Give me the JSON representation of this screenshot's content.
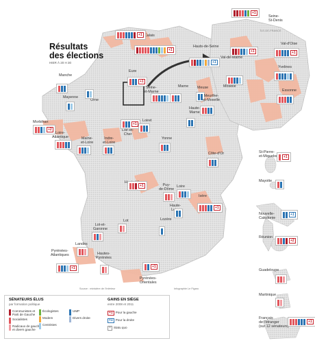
{
  "title_lines": [
    "Résultats",
    "des élections"
  ],
  "subtitle": "HIER À 20 H 30",
  "paris_region_note": "ÎLE-DE-FRANCE",
  "colors": {
    "communistes": "#b01e2c",
    "socialistes": "#e2565c",
    "gauche_divers": "#f19ba0",
    "ecologistes": "#6fb33f",
    "modem": "#f2a93b",
    "centristes": "#9fcbe8",
    "ump": "#2b74b3",
    "droite_divers": "#9fb6d6",
    "land": "#dcdcdc",
    "highlight": "#f2b8a2",
    "badge_left": "#c7202a",
    "badge_right": "#2b74b3"
  },
  "departments": [
    {
      "id": "pas-de-calais",
      "name": "Pas-de-Calais",
      "seats": [
        "socialistes",
        "socialistes",
        "socialistes",
        "ump",
        "ump",
        "ump",
        "communistes"
      ],
      "gain": "+1",
      "gain_side": "left"
    },
    {
      "id": "nord",
      "name": "Nord",
      "seats": [
        "communistes",
        "socialistes",
        "socialistes",
        "socialistes",
        "socialistes",
        "ump",
        "ump",
        "ump",
        "ecologistes",
        "centristes",
        "modem"
      ],
      "gain": "+1",
      "gain_side": "left"
    },
    {
      "id": "seine-st-denis",
      "name": "Seine-\nSt-Denis",
      "seats": [
        "communistes",
        "communistes",
        "socialistes",
        "socialistes",
        "ump",
        "ecologistes"
      ],
      "gain": "+1",
      "gain_side": "left"
    },
    {
      "id": "hauts-de-seine",
      "name": "Hauts-de-Seine",
      "seats": [
        "socialistes",
        "communistes",
        "ump",
        "ump",
        "centristes",
        "modem",
        "droite_divers"
      ],
      "gain": "+1",
      "gain_side": "right"
    },
    {
      "id": "val-de-marne",
      "name": "Val-de-Marne",
      "seats": [
        "communistes",
        "communistes",
        "socialistes",
        "ump",
        "ump",
        "centristes"
      ],
      "gain": "+1",
      "gain_side": "left"
    },
    {
      "id": "val-doise",
      "name": "Val-d'Oise",
      "seats": [
        "socialistes",
        "socialistes",
        "ump",
        "ump",
        "ump"
      ],
      "gain": "+1",
      "gain_side": "left"
    },
    {
      "id": "yvelines",
      "name": "Yvelines",
      "seats": [
        "socialistes",
        "ump",
        "ump",
        "ump",
        "centristes",
        "ump"
      ],
      "gain": "",
      "gain_side": ""
    },
    {
      "id": "essonne",
      "name": "Essonne",
      "seats": [
        "socialistes",
        "socialistes",
        "socialistes",
        "ump",
        "ump"
      ],
      "gain": "",
      "gain_side": ""
    },
    {
      "id": "manche",
      "name": "Manche",
      "seats": [
        "socialistes",
        "ump",
        "ump"
      ],
      "gain": "",
      "gain_side": ""
    },
    {
      "id": "orne",
      "name": "Orne",
      "seats": [
        "ump",
        "centristes"
      ],
      "gain": "",
      "gain_side": ""
    },
    {
      "id": "eure",
      "name": "Eure",
      "seats": [
        "socialistes",
        "ump",
        "ump"
      ],
      "gain": "+1",
      "gain_side": "left"
    },
    {
      "id": "seine-et-marne",
      "name": "Seine-\net-Marne",
      "seats": [
        "socialistes",
        "socialistes",
        "ump",
        "ump",
        "ump",
        "centristes"
      ],
      "gain": "",
      "gain_side": ""
    },
    {
      "id": "marne",
      "name": "Marne",
      "seats": [
        "socialistes",
        "ump",
        "ump"
      ],
      "gain": "",
      "gain_side": ""
    },
    {
      "id": "meuse",
      "name": "Meuse",
      "seats": [
        "ump",
        "ump"
      ],
      "gain": "",
      "gain_side": ""
    },
    {
      "id": "moselle",
      "name": "Moselle",
      "seats": [
        "socialistes",
        "socialistes",
        "ump",
        "ump",
        "centristes"
      ],
      "gain": "",
      "gain_side": ""
    },
    {
      "id": "meurthe-et-moselle",
      "name": "Meurthe-\net-Moselle",
      "seats": [
        "socialistes",
        "socialistes",
        "ump",
        "ump"
      ],
      "gain": "",
      "gain_side": ""
    },
    {
      "id": "haute-marne",
      "name": "Haute-\nMarne",
      "seats": [
        "ump",
        "ump"
      ],
      "gain": "",
      "gain_side": ""
    },
    {
      "id": "mayenne",
      "name": "Mayenne",
      "seats": [
        "ump",
        "centristes"
      ],
      "gain": "",
      "gain_side": ""
    },
    {
      "id": "morbihan",
      "name": "Morbihan",
      "seats": [
        "socialistes",
        "socialistes",
        "ump",
        "centristes"
      ],
      "gain": "+2",
      "gain_side": "left"
    },
    {
      "id": "loire-atlantique",
      "name": "Loire-\nAtlantique",
      "seats": [
        "socialistes",
        "socialistes",
        "socialistes",
        "ump",
        "ump"
      ],
      "gain": "",
      "gain_side": ""
    },
    {
      "id": "maine-et-loire",
      "name": "Maine-\net-Loire",
      "seats": [
        "socialistes",
        "ump",
        "ump",
        "centristes"
      ],
      "gain": "",
      "gain_side": ""
    },
    {
      "id": "indre-et-loire",
      "name": "Indre-\net-Loire",
      "seats": [
        "socialistes",
        "ump",
        "ump"
      ],
      "gain": "",
      "gain_side": ""
    },
    {
      "id": "loir-et-cher",
      "name": "Loir-et-\nCher",
      "seats": [
        "socialistes",
        "ump",
        "ump"
      ],
      "gain": "+1",
      "gain_side": "left"
    },
    {
      "id": "loiret",
      "name": "Loiret",
      "seats": [
        "socialistes",
        "ump",
        "ump"
      ],
      "gain": "",
      "gain_side": ""
    },
    {
      "id": "yonne",
      "name": "Yonne",
      "seats": [
        "socialistes",
        "ump",
        "ump"
      ],
      "gain": "",
      "gain_side": ""
    },
    {
      "id": "cote-dor",
      "name": "Côte-d'Or",
      "seats": [
        "socialistes",
        "ump",
        "ump"
      ],
      "gain": "",
      "gain_side": ""
    },
    {
      "id": "haute-vienne",
      "name": "Haute-Vienne",
      "seats": [
        "socialistes",
        "socialistes",
        "communistes"
      ],
      "gain": "+1",
      "gain_side": "left"
    },
    {
      "id": "puy-de-dome",
      "name": "Puy-\nde-Dôme",
      "seats": [
        "socialistes",
        "socialistes",
        "gauche_divers"
      ],
      "gain": "",
      "gain_side": ""
    },
    {
      "id": "loire",
      "name": "Loire",
      "seats": [
        "socialistes",
        "ump",
        "ump",
        "centristes"
      ],
      "gain": "",
      "gain_side": ""
    },
    {
      "id": "haute-loire",
      "name": "Haute-\nLoire",
      "seats": [
        "ump",
        "ump"
      ],
      "gain": "",
      "gain_side": ""
    },
    {
      "id": "isere",
      "name": "Isère",
      "seats": [
        "socialistes",
        "socialistes",
        "socialistes",
        "ump",
        "ump"
      ],
      "gain": "+1",
      "gain_side": "left"
    },
    {
      "id": "lot-et-garonne",
      "name": "Lot-et-\nGaronne",
      "seats": [
        "socialistes",
        "ump",
        "gauche_divers"
      ],
      "gain": "",
      "gain_side": ""
    },
    {
      "id": "lot",
      "name": "Lot",
      "seats": [
        "socialistes",
        "gauche_divers"
      ],
      "gain": "",
      "gain_side": ""
    },
    {
      "id": "lozere",
      "name": "Lozère",
      "seats": [
        "ump"
      ],
      "gain": "",
      "gain_side": ""
    },
    {
      "id": "landes",
      "name": "Landes",
      "seats": [
        "socialistes",
        "socialistes",
        "gauche_divers"
      ],
      "gain": "",
      "gain_side": ""
    },
    {
      "id": "pyrenees-atlantiques",
      "name": "Pyrénées-\nAtlantiques",
      "seats": [
        "socialistes",
        "ump",
        "ump",
        "centristes"
      ],
      "gain": "+1",
      "gain_side": "left"
    },
    {
      "id": "hautes-pyrenees",
      "name": "Hautes-\nPyrénées",
      "seats": [
        "socialistes",
        "gauche_divers"
      ],
      "gain": "",
      "gain_side": ""
    },
    {
      "id": "pyrenees-orientales",
      "name": "Pyrénées-\nOrientales",
      "seats": [
        "socialistes",
        "ump"
      ],
      "gain": "+1",
      "gain_side": "left"
    },
    {
      "id": "st-pierre",
      "name": "St-Pierre-\net-Miquelon",
      "seats": [
        "socialistes"
      ],
      "gain": "+1",
      "gain_side": "left"
    },
    {
      "id": "mayotte",
      "name": "Mayotte",
      "seats": [
        "socialistes",
        "ump"
      ],
      "gain": "",
      "gain_side": ""
    },
    {
      "id": "nouvelle-caledonie",
      "name": "Nouvelle-\nCalédonie",
      "seats": [
        "ump",
        "ump"
      ],
      "gain": "+1",
      "gain_side": "right"
    },
    {
      "id": "reunion",
      "name": "Réunion",
      "seats": [
        "socialistes",
        "socialistes",
        "ump",
        "communistes"
      ],
      "gain": "+2",
      "gain_side": "left"
    },
    {
      "id": "guadeloupe",
      "name": "Guadeloupe",
      "seats": [
        "socialistes",
        "socialistes",
        "gauche_divers"
      ],
      "gain": "",
      "gain_side": ""
    },
    {
      "id": "martinique",
      "name": "Martinique",
      "seats": [
        "socialistes",
        "gauche_divers"
      ],
      "gain": "",
      "gain_side": ""
    },
    {
      "id": "francais-etranger",
      "name": "Français\nde l'étranger\n(sur 12 sénateurs)",
      "seats": [
        "socialistes",
        "socialistes",
        "socialistes",
        "ump",
        "ump",
        "ump"
      ],
      "gain": "+1",
      "gain_side": "left"
    }
  ],
  "legend": {
    "title": "SÉNATEURS ÉLUS",
    "subtitle": "par formation politique",
    "parties": [
      {
        "key": "communistes",
        "label": "Communistes et\nParti de Gauche"
      },
      {
        "key": "socialistes",
        "label": "Socialistes"
      },
      {
        "key": "gauche_divers",
        "label": "Radicaux de gauche\net divers gauche"
      },
      {
        "key": "ecologistes",
        "label": "Écologistes"
      },
      {
        "key": "modem",
        "label": "Modem"
      },
      {
        "key": "centristes",
        "label": "Centristes"
      },
      {
        "key": "ump",
        "label": "UMP"
      },
      {
        "key": "droite_divers",
        "label": "Divers droite"
      }
    ],
    "gains_title": "GAINS EN SIÈGE",
    "gains_subtitle": "entre 2008 et 2011",
    "gains": [
      {
        "symbol": "+1",
        "label": "Pour la gauche",
        "side": "left"
      },
      {
        "symbol": "+1",
        "label": "Pour la droite",
        "side": "right"
      },
      {
        "symbol": "=",
        "label": "Statu quo",
        "side": "neutral"
      }
    ]
  },
  "credits": {
    "left": "Source : ministère de l'Intérieur",
    "right": "Infographie Le Figaro"
  }
}
